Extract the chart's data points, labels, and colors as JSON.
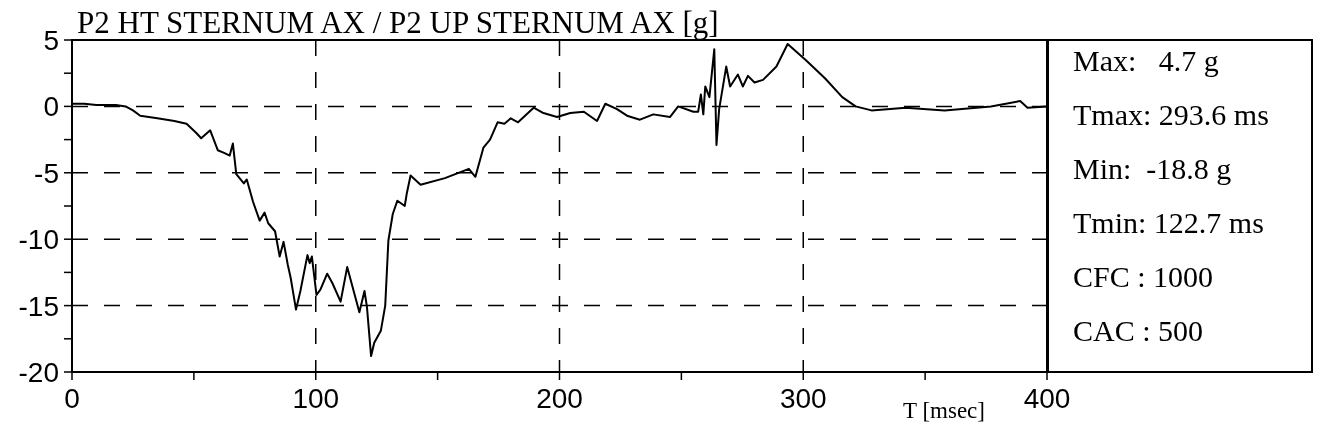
{
  "chart_data": {
    "type": "line",
    "title": "P2 HT STERNUM AX / P2 UP STERNUM AX [g]",
    "xlabel": "T [msec]",
    "annotations": [
      "Max:   4.7 g",
      "Tmax: 293.6 ms",
      "Min:  -18.8 g",
      "Tmin: 122.7 ms",
      "CFC : 1000",
      "CAC : 500"
    ],
    "x": [
      0,
      5,
      10,
      18,
      22,
      25,
      28,
      35,
      42,
      47,
      51,
      53,
      56.7,
      59.8,
      62.4,
      64.7,
      66,
      67.4,
      70.5,
      71.7,
      74.3,
      77,
      79,
      80.5,
      83.3,
      85.2,
      86.8,
      88.5,
      89.7,
      91.9,
      93.7,
      96.6,
      97.5,
      98.4,
      100.3,
      101.9,
      104.7,
      106.8,
      110.2,
      112.9,
      117.9,
      120,
      121,
      122.7,
      124,
      126.7,
      128.5,
      129.8,
      131.6,
      133.5,
      136.5,
      137.3,
      138.9,
      143,
      153,
      162.8,
      165.5,
      168.8,
      171.5,
      174.6,
      177.4,
      180,
      183,
      189.4,
      193.4,
      199,
      204.4,
      210,
      215.4,
      218.8,
      223.6,
      227.7,
      233,
      238.5,
      245.3,
      248.7,
      254.9,
      256.9,
      258,
      259,
      259.8,
      261.5,
      263.5,
      264.4,
      265.5,
      268.4,
      270,
      273.2,
      275.2,
      277.3,
      280,
      283.5,
      289,
      293.6,
      301,
      309,
      316,
      321.5,
      328,
      342,
      358,
      377,
      389,
      392,
      400
    ],
    "series": [
      {
        "color": "#000000",
        "values": [
          0.2,
          0.2,
          0.1,
          0.1,
          0,
          -0.3,
          -0.7,
          -0.9,
          -1.1,
          -1.3,
          -2,
          -2.4,
          -1.8,
          -3.3,
          -3.5,
          -3.7,
          -2.8,
          -5.1,
          -5.8,
          -5.5,
          -7.2,
          -8.6,
          -8,
          -8.8,
          -9.4,
          -11.3,
          -10.2,
          -11.9,
          -12.9,
          -15.3,
          -13.9,
          -11.2,
          -11.8,
          -11.3,
          -14.2,
          -13.8,
          -12.6,
          -13.3,
          -14.7,
          -12.1,
          -15.5,
          -13.9,
          -15.1,
          -18.8,
          -17.8,
          -16.9,
          -15,
          -10.1,
          -8.1,
          -7.1,
          -7.5,
          -6.6,
          -5.2,
          -5.9,
          -5.4,
          -4.7,
          -5.3,
          -3.1,
          -2.5,
          -1.2,
          -1.3,
          -0.9,
          -1.2,
          -0.1,
          -0.5,
          -0.8,
          -0.5,
          -0.4,
          -1.1,
          0.2,
          -0.2,
          -0.7,
          -1,
          -0.6,
          -0.8,
          0,
          -0.4,
          -0.4,
          0.9,
          -0.6,
          1.5,
          0.7,
          4.3,
          -2.9,
          -0.2,
          3,
          1.5,
          2.4,
          1.5,
          2.3,
          1.8,
          2,
          3,
          4.7,
          3.5,
          2.1,
          0.7,
          0,
          -0.3,
          -0.1,
          -0.3,
          0,
          0.4,
          -0.1,
          0
        ]
      }
    ],
    "xlim": [
      0,
      400
    ],
    "ylim": [
      -20,
      5
    ],
    "xticks": [
      0,
      {
        "value": 50,
        "label": null
      },
      100,
      {
        "value": 150,
        "label": null
      },
      200,
      {
        "value": 250,
        "label": null
      },
      300,
      {
        "value": 350,
        "label": null
      },
      400
    ],
    "yticks": [
      -20,
      {
        "value": -17.5,
        "label": null
      },
      -15,
      {
        "value": -12.5,
        "label": null
      },
      -10,
      {
        "value": -7.5,
        "label": null
      },
      -5,
      {
        "value": -2.5,
        "label": null
      },
      0,
      {
        "value": 2.5,
        "label": null
      },
      5
    ],
    "grid": true
  }
}
